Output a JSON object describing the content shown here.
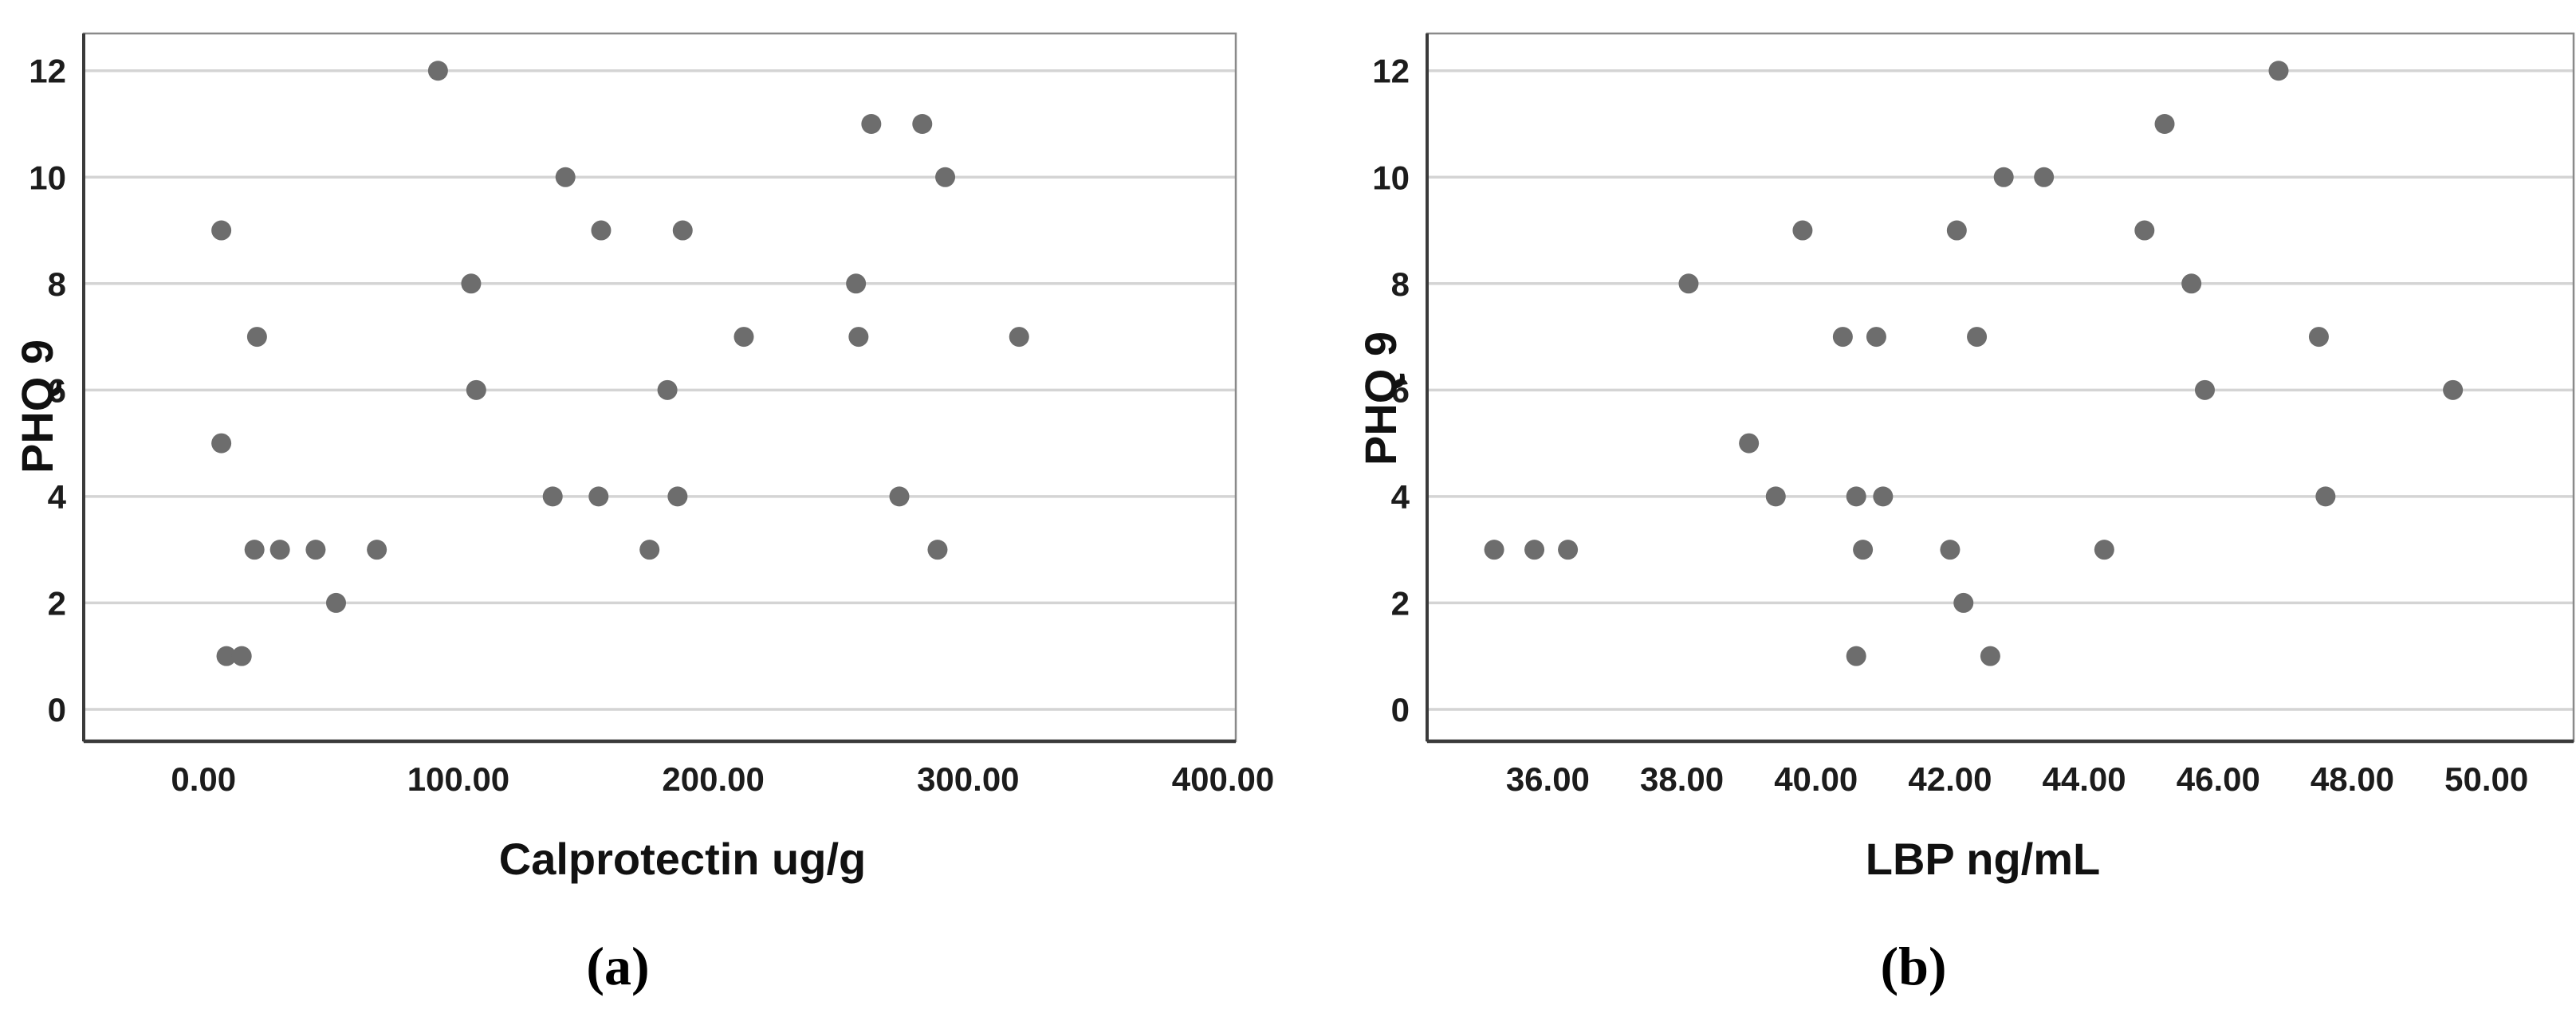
{
  "figure": {
    "background": "#ffffff",
    "description": "Two-panel scatter figure of PHQ 9 depression score versus gut biomarkers"
  },
  "chart_data": [
    {
      "type": "scatter",
      "panel_label": "(a)",
      "title": "",
      "xlabel": "Calprotectin ug/g",
      "ylabel": "PHQ 9",
      "xlim": [
        -47,
        405
      ],
      "ylim": [
        -0.6,
        12.7
      ],
      "grid": "horizontal",
      "legend": "none",
      "point_color": "#6d6d6d",
      "grid_color": "#d4d4d4",
      "frame_color": "#8a8a8a",
      "axis_color": "#3a3a3a",
      "label_color": "#1c1c1c",
      "x_ticks": [
        {
          "value": 0,
          "label": "0.00"
        },
        {
          "value": 100,
          "label": "100.00"
        },
        {
          "value": 200,
          "label": "200.00"
        },
        {
          "value": 300,
          "label": "300.00"
        },
        {
          "value": 400,
          "label": "400.00"
        }
      ],
      "y_ticks": [
        {
          "value": 0,
          "label": "0"
        },
        {
          "value": 2,
          "label": "2"
        },
        {
          "value": 4,
          "label": "4"
        },
        {
          "value": 6,
          "label": "6"
        },
        {
          "value": 8,
          "label": "8"
        },
        {
          "value": 10,
          "label": "10"
        },
        {
          "value": 12,
          "label": "12"
        }
      ],
      "points": [
        [
          7,
          9
        ],
        [
          7,
          5
        ],
        [
          9,
          1
        ],
        [
          15,
          1
        ],
        [
          20,
          3
        ],
        [
          21,
          7
        ],
        [
          30,
          3
        ],
        [
          44,
          3
        ],
        [
          52,
          2
        ],
        [
          68,
          3
        ],
        [
          92,
          12
        ],
        [
          105,
          8
        ],
        [
          107,
          6
        ],
        [
          137,
          4
        ],
        [
          142,
          10
        ],
        [
          155,
          4
        ],
        [
          156,
          9
        ],
        [
          175,
          3
        ],
        [
          182,
          6
        ],
        [
          186,
          4
        ],
        [
          188,
          9
        ],
        [
          212,
          7
        ],
        [
          256,
          8
        ],
        [
          257,
          7
        ],
        [
          262,
          11
        ],
        [
          273,
          4
        ],
        [
          282,
          11
        ],
        [
          288,
          3
        ],
        [
          291,
          10
        ],
        [
          320,
          7
        ]
      ]
    },
    {
      "type": "scatter",
      "panel_label": "(b)",
      "title": "",
      "xlabel": "LBP ng/mL",
      "ylabel": "PHQ 9",
      "xlim": [
        34.2,
        51.3
      ],
      "ylim": [
        -0.6,
        12.7
      ],
      "grid": "horizontal",
      "legend": "none",
      "point_color": "#6d6d6d",
      "grid_color": "#d4d4d4",
      "frame_color": "#8a8a8a",
      "axis_color": "#3a3a3a",
      "label_color": "#1c1c1c",
      "x_ticks": [
        {
          "value": 36,
          "label": "36.00"
        },
        {
          "value": 38,
          "label": "38.00"
        },
        {
          "value": 40,
          "label": "40.00"
        },
        {
          "value": 42,
          "label": "42.00"
        },
        {
          "value": 44,
          "label": "44.00"
        },
        {
          "value": 46,
          "label": "46.00"
        },
        {
          "value": 48,
          "label": "48.00"
        },
        {
          "value": 50,
          "label": "50.00"
        }
      ],
      "y_ticks": [
        {
          "value": 0,
          "label": "0"
        },
        {
          "value": 2,
          "label": "2"
        },
        {
          "value": 4,
          "label": "4"
        },
        {
          "value": 6,
          "label": "6"
        },
        {
          "value": 8,
          "label": "8"
        },
        {
          "value": 10,
          "label": "10"
        },
        {
          "value": 12,
          "label": "12"
        }
      ],
      "points": [
        [
          35.2,
          3
        ],
        [
          35.8,
          3
        ],
        [
          36.3,
          3
        ],
        [
          38.1,
          8
        ],
        [
          39.0,
          5
        ],
        [
          39.4,
          4
        ],
        [
          39.8,
          9
        ],
        [
          40.4,
          7
        ],
        [
          40.9,
          7
        ],
        [
          40.6,
          4
        ],
        [
          41.0,
          4
        ],
        [
          40.6,
          1
        ],
        [
          40.7,
          3
        ],
        [
          42.0,
          3
        ],
        [
          42.1,
          9
        ],
        [
          42.2,
          2
        ],
        [
          42.4,
          7
        ],
        [
          42.6,
          1
        ],
        [
          42.8,
          10
        ],
        [
          43.4,
          10
        ],
        [
          44.3,
          3
        ],
        [
          44.9,
          9
        ],
        [
          45.2,
          11
        ],
        [
          45.6,
          8
        ],
        [
          45.8,
          6
        ],
        [
          46.9,
          12
        ],
        [
          47.5,
          7
        ],
        [
          47.6,
          4
        ],
        [
          49.5,
          6
        ]
      ]
    }
  ]
}
